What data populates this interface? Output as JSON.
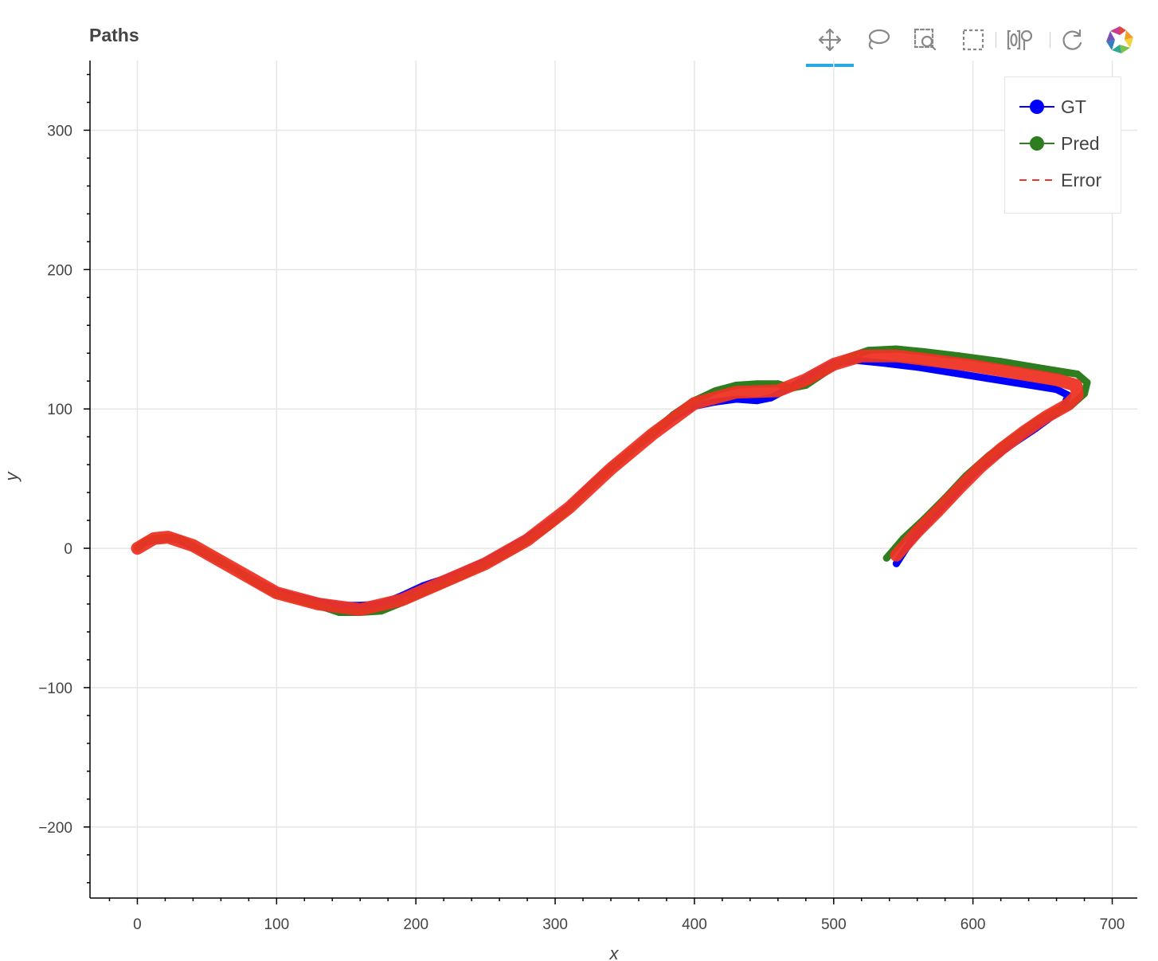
{
  "title": "Paths",
  "toolbar": {
    "tools": [
      {
        "name": "pan-tool",
        "icon": "pan-icon",
        "active": true
      },
      {
        "name": "lasso-select-tool",
        "icon": "lasso-icon",
        "active": false
      },
      {
        "name": "box-zoom-tool",
        "icon": "box-zoom-icon",
        "active": false
      },
      {
        "name": "box-select-tool",
        "icon": "box-select-icon",
        "active": false
      },
      {
        "name": "hover-tool",
        "icon": "hover-icon",
        "active": false
      },
      {
        "name": "reset-tool",
        "icon": "reset-icon",
        "active": false
      },
      {
        "name": "bokeh-logo",
        "icon": "bokeh-logo-icon",
        "active": false
      }
    ]
  },
  "colors": {
    "gt": "#0000ff",
    "pred": "#2e7d1f",
    "error": "#ee3424",
    "grid": "#e6e6e6",
    "axis": "#000000",
    "active_tool": "#26aae1"
  },
  "chart_data": {
    "type": "line",
    "title": "Paths",
    "xlabel": "x",
    "ylabel": "y",
    "xlim": [
      -34,
      718
    ],
    "ylim": [
      -251,
      350
    ],
    "x_ticks": [
      0,
      100,
      200,
      300,
      400,
      500,
      600,
      700
    ],
    "y_ticks": [
      -200,
      -100,
      0,
      100,
      200,
      300
    ],
    "x_tick_labels": [
      "0",
      "100",
      "200",
      "300",
      "400",
      "500",
      "600",
      "700"
    ],
    "y_tick_labels": [
      "−200",
      "−100",
      "0",
      "100",
      "200",
      "300"
    ],
    "grid": true,
    "legend_position": "top-right",
    "series": [
      {
        "name": "GT",
        "style": "line-with-markers",
        "points": [
          [
            0,
            0
          ],
          [
            5,
            4
          ],
          [
            12,
            6
          ],
          [
            22,
            7
          ],
          [
            30,
            6
          ],
          [
            40,
            1
          ],
          [
            55,
            -7
          ],
          [
            70,
            -15
          ],
          [
            85,
            -24
          ],
          [
            100,
            -31
          ],
          [
            115,
            -35
          ],
          [
            130,
            -38
          ],
          [
            145,
            -41
          ],
          [
            160,
            -41
          ],
          [
            175,
            -40
          ],
          [
            190,
            -34
          ],
          [
            205,
            -27
          ],
          [
            220,
            -22
          ],
          [
            235,
            -16
          ],
          [
            250,
            -9
          ],
          [
            265,
            -1
          ],
          [
            280,
            8
          ],
          [
            295,
            18
          ],
          [
            310,
            30
          ],
          [
            325,
            45
          ],
          [
            340,
            58
          ],
          [
            355,
            70
          ],
          [
            370,
            82
          ],
          [
            385,
            94
          ],
          [
            400,
            102
          ],
          [
            415,
            105
          ],
          [
            430,
            107
          ],
          [
            445,
            106
          ],
          [
            455,
            108
          ],
          [
            470,
            116
          ],
          [
            485,
            125
          ],
          [
            500,
            133
          ],
          [
            515,
            135
          ],
          [
            535,
            133
          ],
          [
            560,
            130
          ],
          [
            585,
            126
          ],
          [
            610,
            122
          ],
          [
            635,
            118
          ],
          [
            660,
            114
          ],
          [
            668,
            110
          ],
          [
            666,
            103
          ],
          [
            660,
            97
          ],
          [
            645,
            86
          ],
          [
            630,
            76
          ],
          [
            612,
            63
          ],
          [
            600,
            53
          ],
          [
            585,
            37
          ],
          [
            570,
            21
          ],
          [
            556,
            6
          ],
          [
            545,
            -11
          ]
        ]
      },
      {
        "name": "Pred",
        "style": "line-with-markers",
        "points": [
          [
            0,
            0
          ],
          [
            5,
            5
          ],
          [
            12,
            7
          ],
          [
            22,
            8
          ],
          [
            30,
            7
          ],
          [
            40,
            2
          ],
          [
            55,
            -6
          ],
          [
            70,
            -15
          ],
          [
            85,
            -25
          ],
          [
            100,
            -33
          ],
          [
            115,
            -37
          ],
          [
            130,
            -41
          ],
          [
            145,
            -46
          ],
          [
            160,
            -46
          ],
          [
            175,
            -45
          ],
          [
            190,
            -39
          ],
          [
            205,
            -32
          ],
          [
            220,
            -26
          ],
          [
            235,
            -19
          ],
          [
            250,
            -12
          ],
          [
            265,
            -4
          ],
          [
            280,
            5
          ],
          [
            295,
            15
          ],
          [
            310,
            28
          ],
          [
            325,
            43
          ],
          [
            340,
            57
          ],
          [
            355,
            70
          ],
          [
            370,
            83
          ],
          [
            385,
            96
          ],
          [
            400,
            106
          ],
          [
            415,
            113
          ],
          [
            430,
            117
          ],
          [
            445,
            118
          ],
          [
            460,
            118
          ],
          [
            470,
            115
          ],
          [
            480,
            117
          ],
          [
            495,
            127
          ],
          [
            510,
            137
          ],
          [
            525,
            142
          ],
          [
            545,
            143
          ],
          [
            565,
            141
          ],
          [
            590,
            138
          ],
          [
            620,
            134
          ],
          [
            650,
            129
          ],
          [
            675,
            125
          ],
          [
            682,
            119
          ],
          [
            680,
            111
          ],
          [
            670,
            102
          ],
          [
            658,
            98
          ],
          [
            645,
            91
          ],
          [
            630,
            80
          ],
          [
            612,
            67
          ],
          [
            595,
            52
          ],
          [
            580,
            36
          ],
          [
            565,
            21
          ],
          [
            550,
            7
          ],
          [
            538,
            -7
          ]
        ]
      },
      {
        "name": "Error",
        "style": "dashed",
        "points": [
          [
            0,
            0
          ],
          [
            12,
            7
          ],
          [
            22,
            8
          ],
          [
            40,
            2
          ],
          [
            70,
            -15
          ],
          [
            100,
            -32
          ],
          [
            130,
            -40
          ],
          [
            160,
            -44
          ],
          [
            190,
            -37
          ],
          [
            220,
            -24
          ],
          [
            250,
            -11
          ],
          [
            280,
            6
          ],
          [
            310,
            29
          ],
          [
            340,
            57
          ],
          [
            370,
            82
          ],
          [
            400,
            104
          ],
          [
            430,
            112
          ],
          [
            460,
            113
          ],
          [
            480,
            121
          ],
          [
            500,
            132
          ],
          [
            520,
            138
          ],
          [
            545,
            138
          ],
          [
            570,
            135
          ],
          [
            600,
            131
          ],
          [
            630,
            126
          ],
          [
            660,
            121
          ],
          [
            674,
            117
          ],
          [
            675,
            110
          ],
          [
            668,
            103
          ],
          [
            652,
            94
          ],
          [
            636,
            83
          ],
          [
            620,
            71
          ],
          [
            605,
            58
          ],
          [
            590,
            43
          ],
          [
            575,
            27
          ],
          [
            560,
            12
          ],
          [
            545,
            -5
          ]
        ]
      }
    ]
  }
}
